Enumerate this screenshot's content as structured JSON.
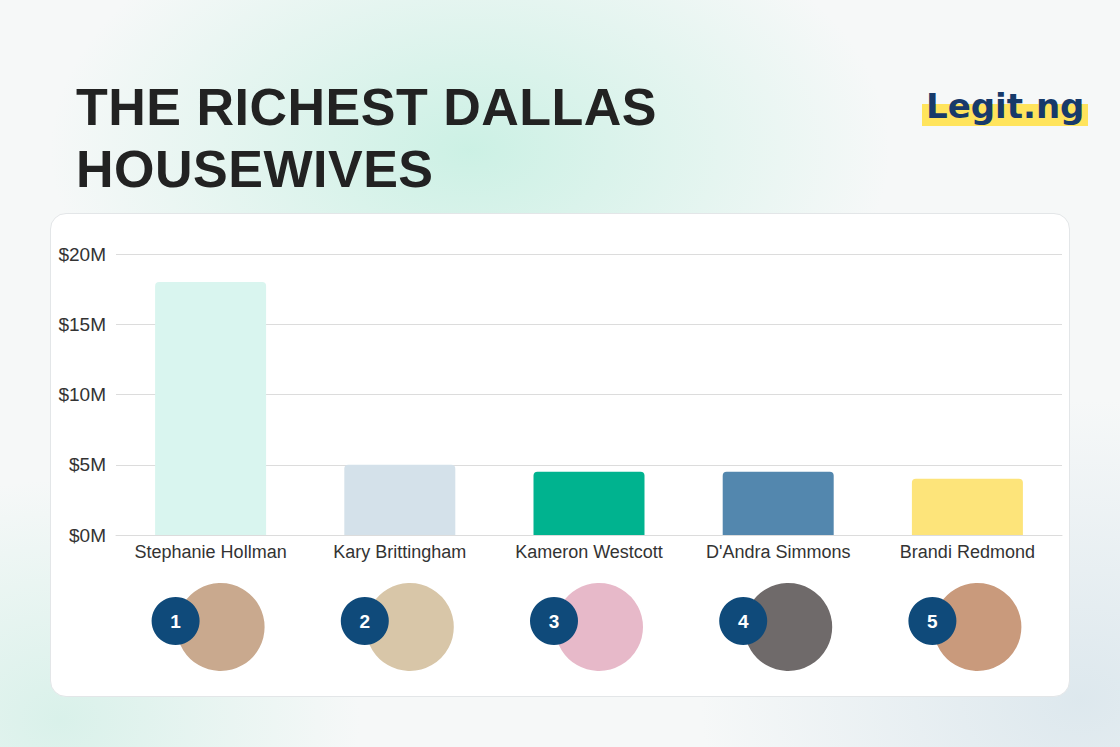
{
  "chart_data": {
    "type": "bar",
    "title": "THE RICHEST DALLAS HOUSEWIVES",
    "logo": "Legit.ng",
    "categories": [
      "Stephanie Hollman",
      "Kary Brittingham",
      "Kameron Westcott",
      "D'Andra Simmons",
      "Brandi Redmond"
    ],
    "values": [
      18,
      5,
      4.5,
      4.5,
      4
    ],
    "colors": [
      "#d9f5ef",
      "#d4e1ea",
      "#00b38f",
      "#5387ae",
      "#fde47a"
    ],
    "ranks": [
      1,
      2,
      3,
      4,
      5
    ],
    "ylim": [
      0,
      20
    ],
    "yticks": [
      {
        "value": 0,
        "label": "$0M"
      },
      {
        "value": 5,
        "label": "$5M"
      },
      {
        "value": 10,
        "label": "$10M"
      },
      {
        "value": 15,
        "label": "$15M"
      },
      {
        "value": 20,
        "label": "$20M"
      }
    ],
    "grid": true
  }
}
